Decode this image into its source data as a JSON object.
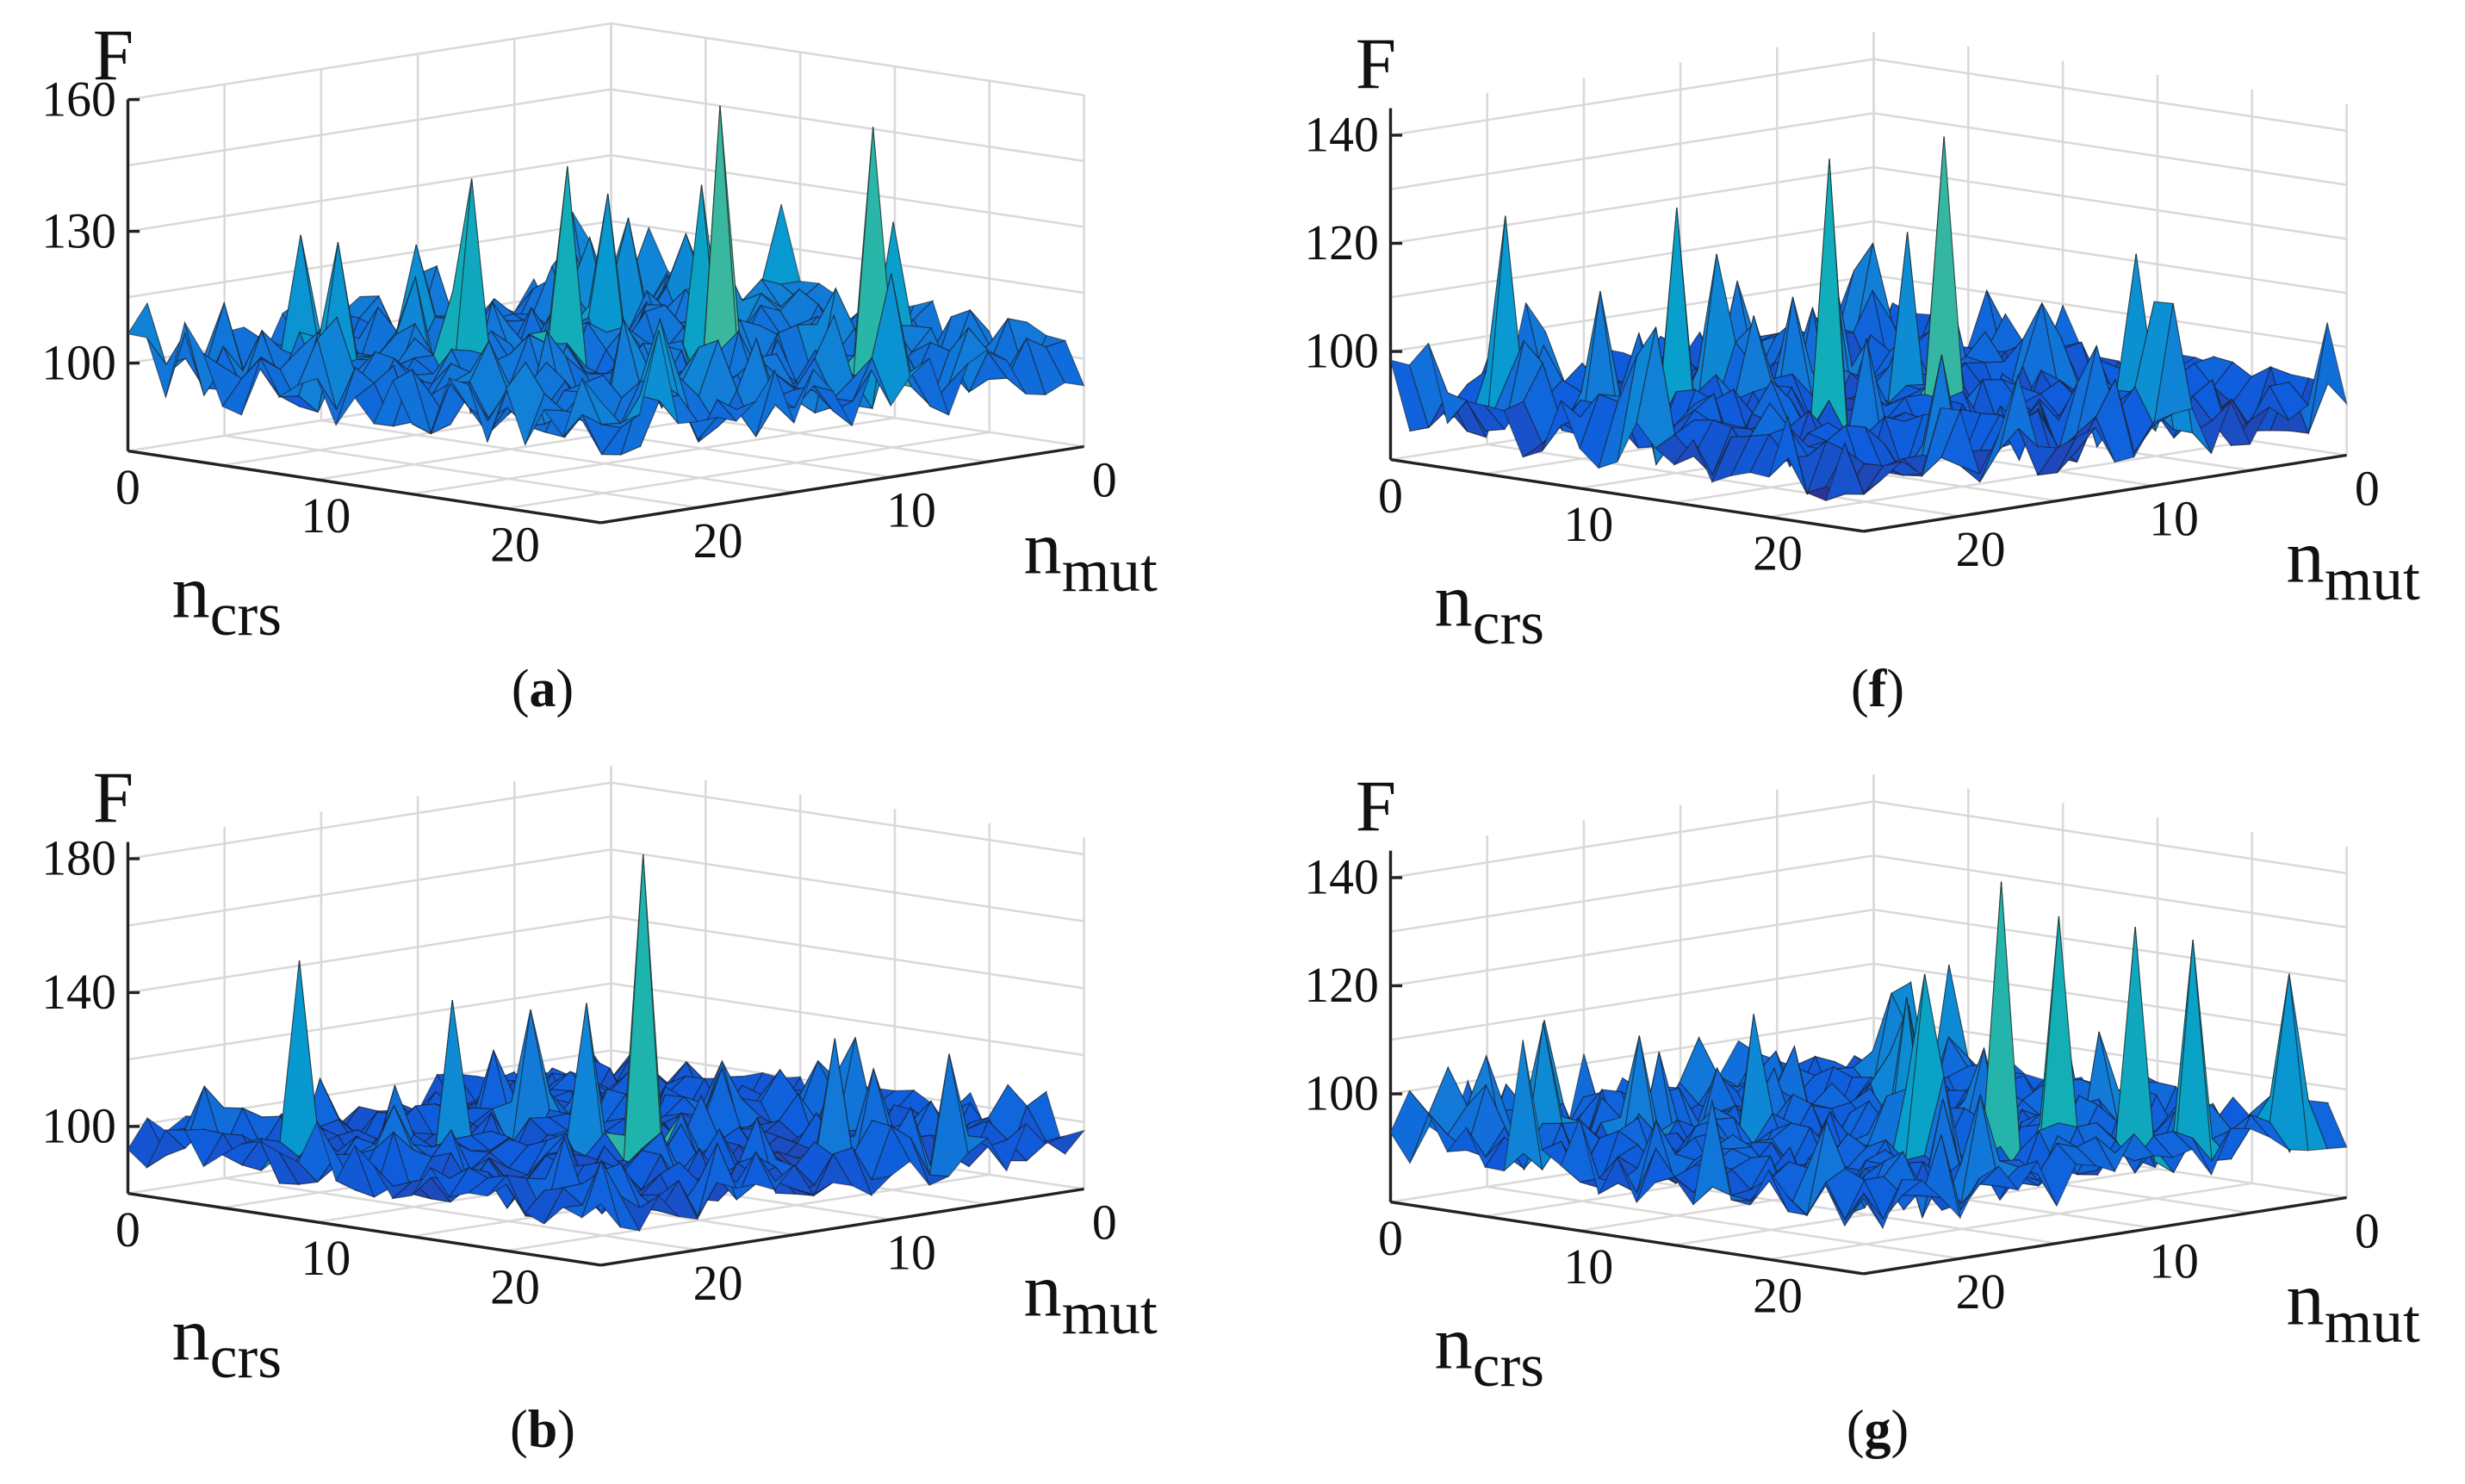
{
  "figure": {
    "panels": [
      {
        "id": "a",
        "caption_letter": "a"
      },
      {
        "id": "f",
        "caption_letter": "f"
      },
      {
        "id": "b",
        "caption_letter": "b"
      },
      {
        "id": "g",
        "caption_letter": "g"
      }
    ]
  },
  "chart_data": [
    {
      "panel": "a",
      "type": "surface3d",
      "zlabel": "F",
      "xlabel": "n_crs",
      "ylabel": "n_mut",
      "xlabel_main": "n",
      "xlabel_sub": "crs",
      "ylabel_main": "n",
      "ylabel_sub": "mut",
      "xticks": [
        0,
        10,
        20
      ],
      "yticks": [
        20,
        10,
        0
      ],
      "zticks": [
        100,
        130,
        160
      ],
      "zlim": [
        80,
        160
      ],
      "grid": true,
      "colormap": "parula",
      "baseline": 100,
      "noise": 8,
      "seed": 11,
      "peaks": [
        {
          "x": 17,
          "y": 11,
          "z": 160
        },
        {
          "x": 21,
          "y": 7,
          "z": 155
        },
        {
          "x": 10,
          "y": 17,
          "z": 143
        },
        {
          "x": 12,
          "y": 14,
          "z": 145
        },
        {
          "x": 15,
          "y": 10,
          "z": 140
        },
        {
          "x": 6,
          "y": 20,
          "z": 128
        },
        {
          "x": 19,
          "y": 4,
          "z": 130
        },
        {
          "x": 3,
          "y": 19,
          "z": 127
        },
        {
          "x": 24,
          "y": 9,
          "z": 125
        },
        {
          "x": 8,
          "y": 8,
          "z": 132
        }
      ]
    },
    {
      "panel": "f",
      "type": "surface3d",
      "zlabel": "F",
      "xlabel": "n_crs",
      "ylabel": "n_mut",
      "xlabel_main": "n",
      "xlabel_sub": "crs",
      "ylabel_main": "n",
      "ylabel_sub": "mut",
      "xticks": [
        0,
        10,
        20
      ],
      "yticks": [
        20,
        10,
        0
      ],
      "zticks": [
        100,
        120,
        140
      ],
      "zlim": [
        80,
        145
      ],
      "grid": true,
      "colormap": "parula",
      "baseline": 90,
      "noise": 6,
      "seed": 23,
      "peaks": [
        {
          "x": 17,
          "y": 13,
          "z": 142
        },
        {
          "x": 14,
          "y": 16,
          "z": 138
        },
        {
          "x": 9,
          "y": 19,
          "z": 128
        },
        {
          "x": 3,
          "y": 22,
          "z": 125
        },
        {
          "x": 12,
          "y": 10,
          "z": 120
        },
        {
          "x": 20,
          "y": 6,
          "z": 118
        },
        {
          "x": 6,
          "y": 14,
          "z": 115
        },
        {
          "x": 24,
          "y": 8,
          "z": 112
        }
      ]
    },
    {
      "panel": "b",
      "type": "surface3d",
      "zlabel": "F",
      "xlabel": "n_crs",
      "ylabel": "n_mut",
      "xlabel_main": "n",
      "xlabel_sub": "crs",
      "ylabel_main": "n",
      "ylabel_sub": "mut",
      "xticks": [
        0,
        10,
        20
      ],
      "yticks": [
        20,
        10,
        0
      ],
      "zticks": [
        100,
        140,
        180
      ],
      "zlim": [
        80,
        185
      ],
      "grid": true,
      "colormap": "parula",
      "baseline": 95,
      "noise": 7,
      "seed": 37,
      "peaks": [
        {
          "x": 16,
          "y": 14,
          "z": 185
        },
        {
          "x": 6,
          "y": 22,
          "z": 152
        },
        {
          "x": 10,
          "y": 18,
          "z": 140
        },
        {
          "x": 13,
          "y": 14,
          "z": 138
        },
        {
          "x": 8,
          "y": 12,
          "z": 130
        },
        {
          "x": 20,
          "y": 8,
          "z": 128
        },
        {
          "x": 24,
          "y": 6,
          "z": 125
        },
        {
          "x": 17,
          "y": 4,
          "z": 122
        }
      ]
    },
    {
      "panel": "g",
      "type": "surface3d",
      "zlabel": "F",
      "xlabel": "n_crs",
      "ylabel": "n_mut",
      "xlabel_main": "n",
      "xlabel_sub": "crs",
      "ylabel_main": "n",
      "ylabel_sub": "mut",
      "xticks": [
        0,
        10,
        20
      ],
      "yticks": [
        20,
        10,
        0
      ],
      "zticks": [
        100,
        120,
        140
      ],
      "zlim": [
        80,
        145
      ],
      "grid": true,
      "colormap": "parula",
      "baseline": 92,
      "noise": 6,
      "seed": 53,
      "peaks": [
        {
          "x": 19,
          "y": 12,
          "z": 142
        },
        {
          "x": 20,
          "y": 10,
          "z": 135
        },
        {
          "x": 22,
          "y": 8,
          "z": 133
        },
        {
          "x": 23,
          "y": 6,
          "z": 130
        },
        {
          "x": 17,
          "y": 14,
          "z": 125
        },
        {
          "x": 24,
          "y": 2,
          "z": 122
        },
        {
          "x": 10,
          "y": 16,
          "z": 115
        },
        {
          "x": 14,
          "y": 12,
          "z": 118
        },
        {
          "x": 6,
          "y": 18,
          "z": 110
        }
      ]
    }
  ]
}
